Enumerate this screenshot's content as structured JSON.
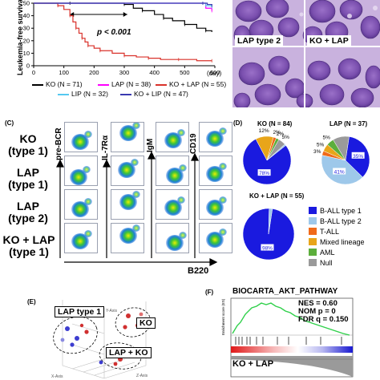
{
  "panelA": {
    "ylabel": "Leukemia-free survival",
    "pvalue": "p < 0.001",
    "xunit": "(day)",
    "legend_row1": [
      "KO (N = 71)",
      "LAP (N = 38)",
      "KO + LAP (N = 55)"
    ],
    "legend_row2": [
      "LIP (N = 32)",
      "KO + LIP (N = 47)"
    ],
    "colors": {
      "KO": "#000000",
      "LAP": "#ff00ff",
      "KO+LAP": "#d9322b",
      "LIP": "#55c8f0",
      "KO+LIP": "#3a3ab0"
    }
  },
  "chart_data": {
    "type": "line",
    "ylabel": "Leukemia-free survival",
    "x_ticks": [
      0,
      100,
      200,
      300,
      400,
      500,
      600
    ],
    "y_ticks": [
      0,
      10,
      20,
      30,
      40,
      50
    ],
    "xlim": [
      0,
      600
    ],
    "ylim": [
      0,
      50
    ],
    "annotation": "p < 0.001",
    "series": [
      {
        "name": "KO (N = 71)",
        "color": "#000000",
        "points": [
          [
            0,
            50
          ],
          [
            120,
            50
          ],
          [
            260,
            50
          ],
          [
            300,
            49
          ],
          [
            330,
            46
          ],
          [
            360,
            44
          ],
          [
            400,
            41
          ],
          [
            430,
            38
          ],
          [
            460,
            36
          ],
          [
            500,
            33
          ],
          [
            540,
            30
          ],
          [
            570,
            28
          ],
          [
            590,
            27
          ]
        ]
      },
      {
        "name": "LAP (N = 38)",
        "color": "#ff00ff",
        "points": [
          [
            0,
            50
          ],
          [
            560,
            50
          ],
          [
            570,
            46
          ],
          [
            590,
            44
          ]
        ]
      },
      {
        "name": "KO + LAP (N = 55)",
        "color": "#d9322b",
        "points": [
          [
            0,
            50
          ],
          [
            80,
            48
          ],
          [
            100,
            45
          ],
          [
            120,
            40
          ],
          [
            130,
            35
          ],
          [
            140,
            30
          ],
          [
            150,
            26
          ],
          [
            160,
            22
          ],
          [
            170,
            19
          ],
          [
            180,
            16
          ],
          [
            200,
            14
          ],
          [
            220,
            12
          ],
          [
            260,
            10
          ],
          [
            300,
            8
          ],
          [
            340,
            7
          ],
          [
            380,
            6
          ],
          [
            420,
            5
          ],
          [
            480,
            5
          ],
          [
            540,
            4
          ],
          [
            590,
            4
          ]
        ]
      },
      {
        "name": "LIP (N = 32)",
        "color": "#55c8f0",
        "points": [
          [
            0,
            50
          ],
          [
            560,
            50
          ],
          [
            570,
            48
          ],
          [
            590,
            47
          ]
        ]
      },
      {
        "name": "KO + LIP (N = 47)",
        "color": "#3a3ab0",
        "points": [
          [
            0,
            50
          ],
          [
            560,
            50
          ],
          [
            575,
            49
          ],
          [
            590,
            48
          ]
        ]
      }
    ]
  },
  "panelB": {
    "labels": [
      "LAP type 2",
      "KO + LAP"
    ]
  },
  "panelC": {
    "letter": "(C)",
    "rows": [
      "KO\n(type 1)",
      "LAP\n(type 1)",
      "LAP\n(type 2)",
      "KO + LAP\n(type 1)"
    ],
    "markers": [
      "pre-BCR",
      "IL-7Rα",
      "IgM",
      "CD19"
    ],
    "xlabel": "B220"
  },
  "panelD": {
    "letter": "(D)",
    "pies": [
      {
        "title": "KO (N = 84)",
        "slices": [
          {
            "label": "B-ALL type 1",
            "value": 78,
            "text": "78%"
          },
          {
            "label": "Mixed lineage",
            "value": 12,
            "text": "12%"
          },
          {
            "label": "T-ALL",
            "value": 2,
            "text": "2%"
          },
          {
            "label": "AML",
            "value": 2,
            "text": "2%"
          },
          {
            "label": "Null",
            "value": 5,
            "text": "5%"
          },
          {
            "label": "B-ALL type 2",
            "value": 1,
            "text": ""
          }
        ]
      },
      {
        "title": "LAP (N = 37)",
        "slices": [
          {
            "label": "B-ALL type 1",
            "value": 35,
            "text": "35%"
          },
          {
            "label": "B-ALL type 2",
            "value": 41,
            "text": "41%"
          },
          {
            "label": "T-ALL",
            "value": 3,
            "text": "3%"
          },
          {
            "label": "Mixed lineage",
            "value": 5,
            "text": "5%"
          },
          {
            "label": "AML",
            "value": 5,
            "text": "5%"
          },
          {
            "label": "Null",
            "value": 11,
            "text": ""
          }
        ]
      },
      {
        "title": "KO + LAP (N = 55)",
        "slices": [
          {
            "label": "B-ALL type 1",
            "value": 98,
            "text": "98%"
          },
          {
            "label": "B-ALL type 2",
            "value": 2,
            "text": ""
          }
        ]
      }
    ],
    "legend": [
      {
        "label": "B-ALL type 1",
        "color": "#1a1adf"
      },
      {
        "label": "B-ALL type 2",
        "color": "#9ec8ea"
      },
      {
        "label": "T-ALL",
        "color": "#f06a1a"
      },
      {
        "label": "Mixed lineage",
        "color": "#e8a51a"
      },
      {
        "label": "AML",
        "color": "#5cae3c"
      },
      {
        "label": "Null",
        "color": "#9a9a9a"
      }
    ]
  },
  "panelE": {
    "letter": "(E)",
    "groups": [
      "LAP type 1",
      "KO",
      "LAP + KO"
    ],
    "axes": [
      "Y-Axis",
      "X-Axis",
      "Z-Axis"
    ]
  },
  "panelF": {
    "letter": "(F)",
    "title": "BIOCARTA_AKT_PATHWAY",
    "stats": [
      "NES = 0.60",
      "NOM p = 0",
      "FDR q = 0.150"
    ],
    "ylabel": "Enrichment score (ES)",
    "label": "KO + LAP"
  }
}
